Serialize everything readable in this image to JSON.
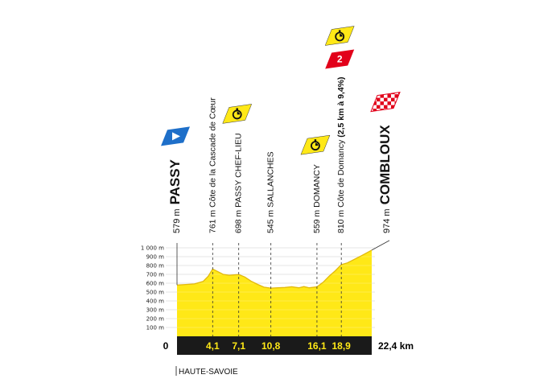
{
  "chart_data": {
    "type": "area",
    "x_unit": "km",
    "y_unit": "m",
    "ylim": [
      0,
      1000
    ],
    "y_ticks": [
      "1 000 m",
      "900 m",
      "800 m",
      "700 m",
      "600 m",
      "500 m",
      "400 m",
      "300 m",
      "200 m",
      "100 m"
    ],
    "x_start_label": "0",
    "x_end_label": "22,4 km",
    "x": [
      0,
      1,
      2,
      3,
      3.6,
      4.1,
      4.6,
      5.3,
      6,
      7.1,
      7.8,
      8.5,
      9.3,
      10,
      10.8,
      11.6,
      12.4,
      13.2,
      14,
      14.6,
      15.2,
      16.1,
      16.8,
      17.5,
      18.2,
      18.9,
      19.6,
      20.4,
      21.2,
      22.4
    ],
    "y": [
      579,
      585,
      592,
      620,
      680,
      761,
      735,
      700,
      690,
      698,
      670,
      625,
      585,
      555,
      545,
      548,
      552,
      560,
      548,
      562,
      548,
      559,
      610,
      680,
      740,
      810,
      830,
      870,
      910,
      974
    ],
    "markers": [
      {
        "km": "0",
        "altitude": "579 m",
        "name": "PASSY",
        "type": "start"
      },
      {
        "km": "4,1",
        "altitude": "761 m",
        "name": "Côte de la Cascade de Cœur",
        "type": "climb"
      },
      {
        "km": "7,1",
        "altitude": "698 m",
        "name": "PASSY CHEF-LIEU",
        "type": "timing"
      },
      {
        "km": "10,8",
        "altitude": "545 m",
        "name": "SALLANCHES",
        "type": "town"
      },
      {
        "km": "16,1",
        "altitude": "559 m",
        "name": "DOMANCY",
        "type": "timing"
      },
      {
        "km": "18,9",
        "altitude": "810 m",
        "name": "Côte de Domancy",
        "detail": "(2,5 km à 9,4%)",
        "type": "climb",
        "category": "2"
      },
      {
        "km": "22,4",
        "altitude": "974 m",
        "name": "COMBLOUX",
        "type": "finish"
      }
    ],
    "region": "HAUTE-SAVOIE",
    "colors": {
      "fill": "#FFE817",
      "ridge": "#E2B90C",
      "bar": "#1A1A1A",
      "start_flag": "#1E6FC9",
      "category_flag": "#E2001A",
      "timing_flag": "#FFE817"
    }
  }
}
